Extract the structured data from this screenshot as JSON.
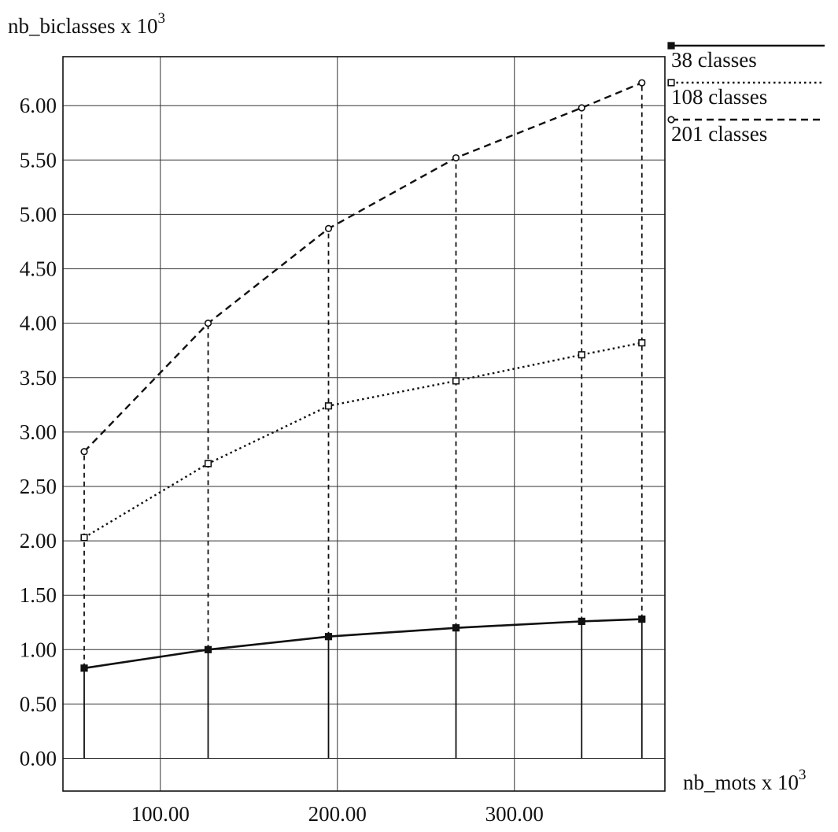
{
  "chart_data": {
    "type": "line",
    "title": "",
    "ylabel": "nb_biclasses x 10",
    "ylabel_exp": "3",
    "xlabel": "nb_mots x 10",
    "xlabel_exp": "3",
    "xlim": [
      45,
      385
    ],
    "ylim": [
      -0.3,
      6.45
    ],
    "xticks": [
      100,
      200,
      300
    ],
    "xtick_labels": [
      "100.00",
      "200.00",
      "300.00"
    ],
    "yticks": [
      0,
      0.5,
      1,
      1.5,
      2,
      2.5,
      3,
      3.5,
      4,
      4.5,
      5,
      5.5,
      6
    ],
    "ytick_labels": [
      "0.00",
      "0.50",
      "1.00",
      "1.50",
      "2.00",
      "2.50",
      "3.00",
      "3.50",
      "4.00",
      "4.50",
      "5.00",
      "5.50",
      "6.00"
    ],
    "grid": true,
    "legend_position": "top-right outside",
    "x": [
      57,
      127,
      195,
      267,
      338,
      372
    ],
    "series": [
      {
        "name": "38 classes",
        "style": "solid",
        "marker": "filled-square",
        "values": [
          0.83,
          1.0,
          1.12,
          1.2,
          1.26,
          1.28
        ]
      },
      {
        "name": "108 classes",
        "style": "dotted",
        "marker": "open-square",
        "values": [
          2.03,
          2.71,
          3.24,
          3.47,
          3.71,
          3.82
        ]
      },
      {
        "name": "201 classes",
        "style": "dashed",
        "marker": "open-circle",
        "values": [
          2.82,
          4.0,
          4.87,
          5.52,
          5.98,
          6.21
        ]
      }
    ],
    "drop_lines": true
  }
}
